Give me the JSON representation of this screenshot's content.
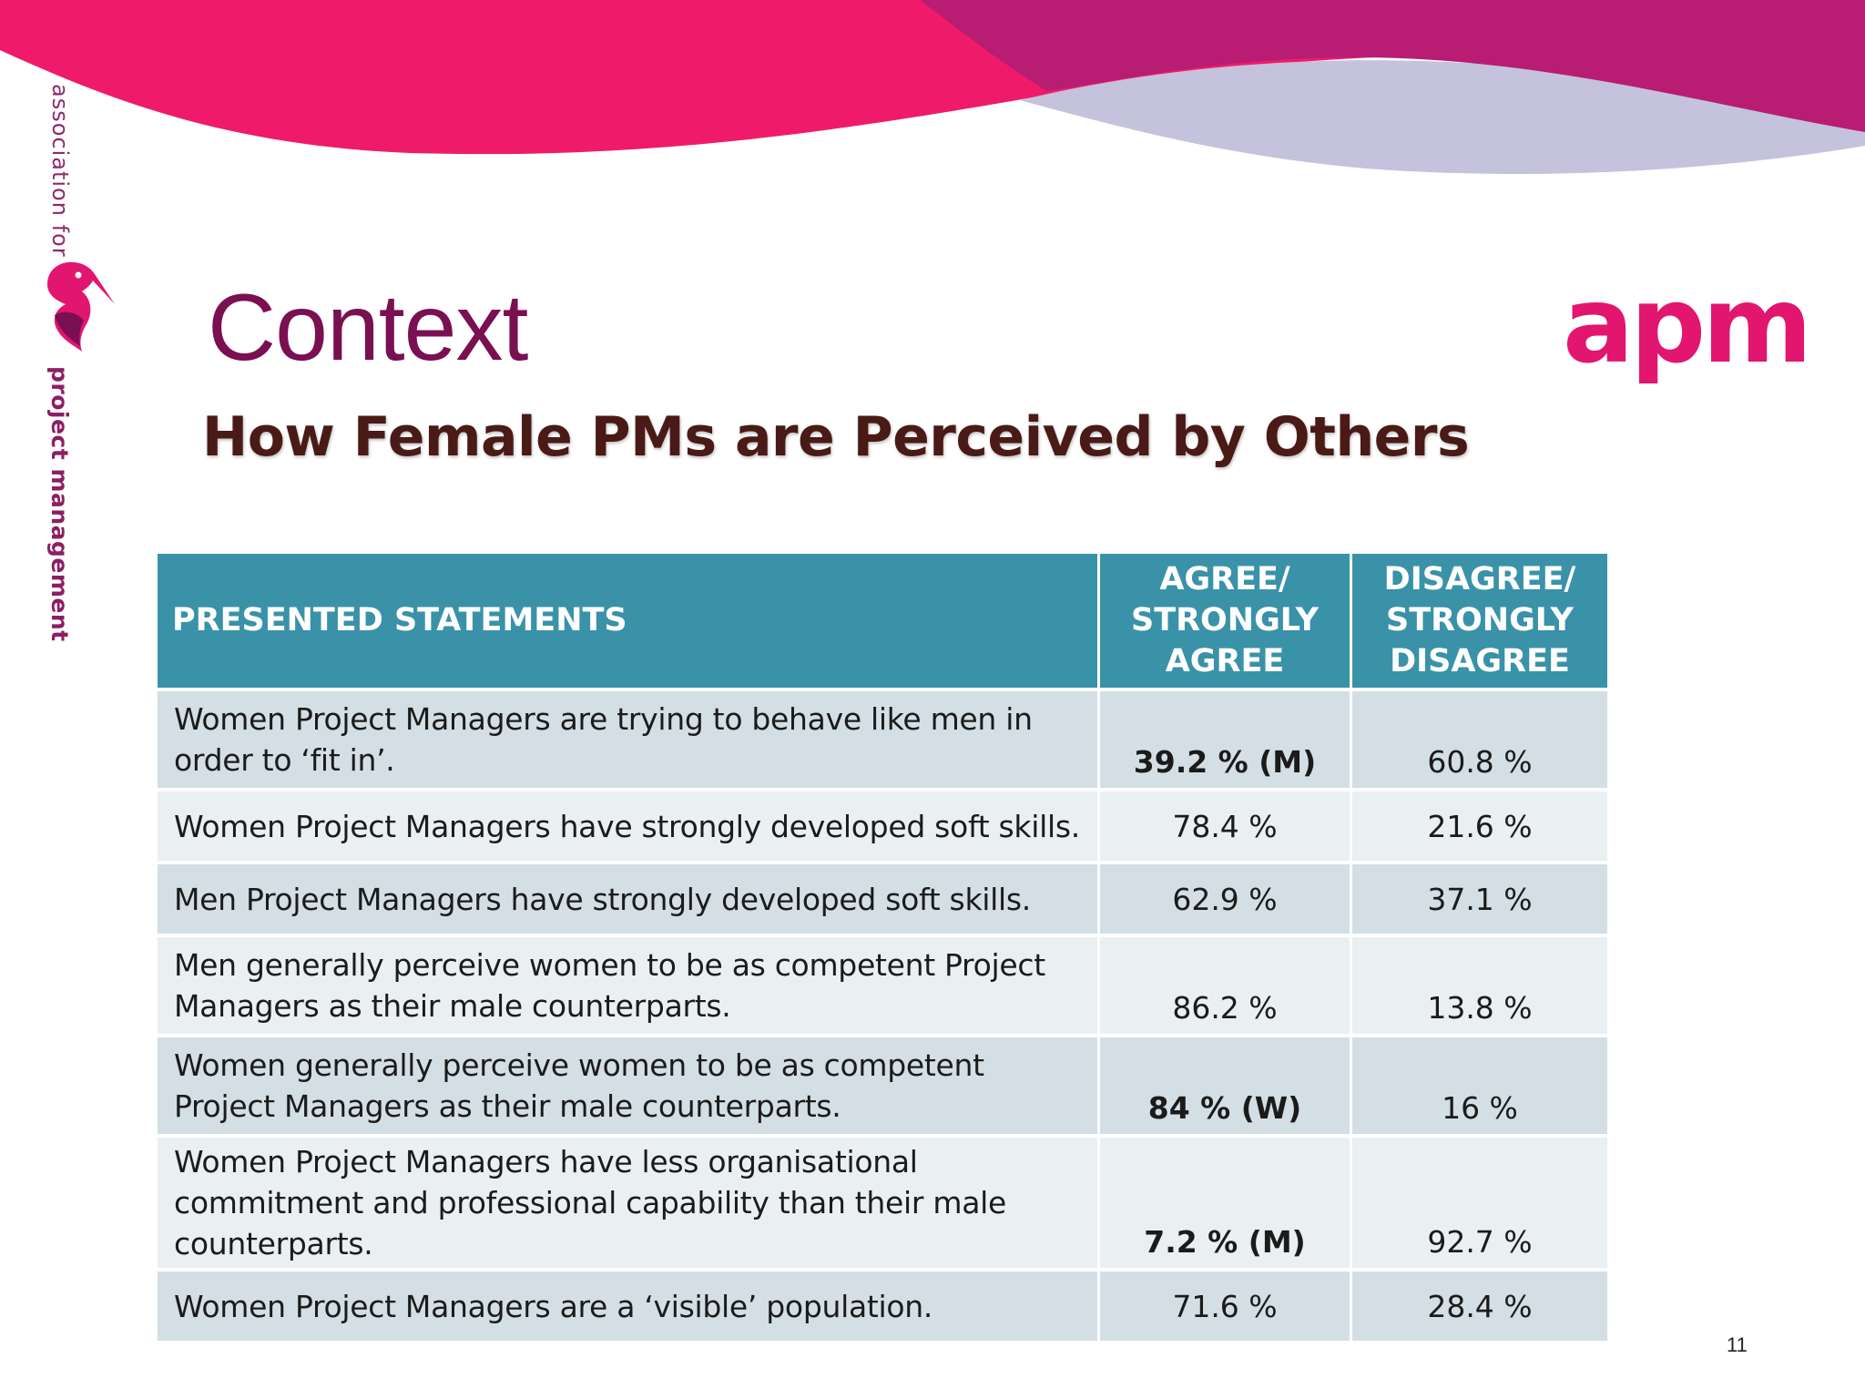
{
  "brand": {
    "side_text_top": "association for",
    "side_text_bottom": "project management",
    "logo_text": "apm",
    "colors": {
      "pink": "#ef1b6a",
      "magenta": "#b81c73",
      "lavender": "#c4c2dc",
      "title": "#7a0f52",
      "table_header": "#3a92a8"
    },
    "icon": "heron-bird-logo"
  },
  "slide": {
    "title": "Context",
    "subtitle": "How Female PMs are Perceived by Others",
    "page_number": "11"
  },
  "table": {
    "headers": {
      "statement": "PRESENTED STATEMENTS",
      "agree": [
        "AGREE/",
        "STRONGLY",
        "AGREE"
      ],
      "disagree": [
        "DISAGREE/",
        "STRONGLY",
        "DISAGREE"
      ]
    },
    "rows": [
      {
        "statement": "Women Project Managers are trying to behave like men in order to ‘fit in’.",
        "agree": "39.2 % (M)",
        "disagree": "60.8 %"
      },
      {
        "statement": "Women Project Managers have strongly developed soft skills.",
        "agree": "78.4 %",
        "disagree": "21.6 %"
      },
      {
        "statement": "Men Project Managers have strongly developed soft skills.",
        "agree": "62.9 %",
        "disagree": "37.1 %"
      },
      {
        "statement": "Men generally perceive women to be as competent Project Managers as their male counterparts.",
        "agree": "86.2 %",
        "disagree": "13.8 %"
      },
      {
        "statement": "Women generally perceive women to be as competent Project Managers as their male counterparts.",
        "agree": "84 % (W)",
        "disagree": "16 %"
      },
      {
        "statement": "Women Project Managers have less organisational commitment and professional capability than their male counterparts.",
        "agree": "7.2 % (M)",
        "disagree": "92.7 %"
      },
      {
        "statement": "Women Project Managers are a ‘visible’ population.",
        "agree": "71.6 %",
        "disagree": "28.4 %"
      }
    ]
  }
}
